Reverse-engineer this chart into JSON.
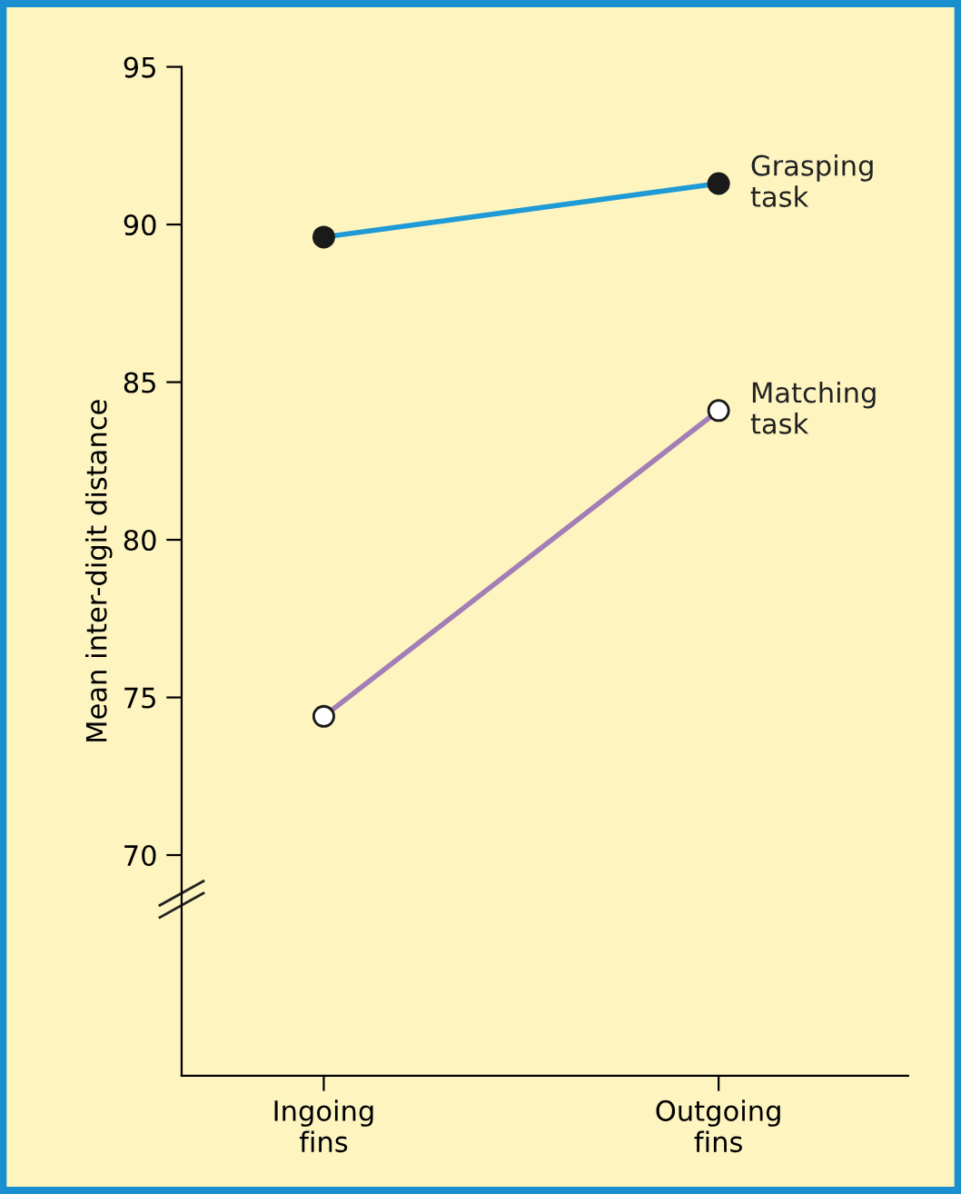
{
  "chart_data": {
    "type": "line",
    "ylabel": "Mean inter-digit distance",
    "categories": [
      "Ingoing\nfins",
      "Outgoing\nfins"
    ],
    "series": [
      {
        "name": "Grasping\ntask",
        "color": "#1e9ad6",
        "values": [
          89.6,
          91.3
        ]
      },
      {
        "name": "Matching\ntask",
        "color": "#a27db6",
        "values": [
          74.4,
          84.1
        ]
      }
    ],
    "ylim": [
      63,
      95
    ],
    "yticks": [
      70,
      75,
      80,
      85,
      90,
      95
    ],
    "marker": "circle",
    "line_style": "solid",
    "grid": false,
    "legend": false
  }
}
